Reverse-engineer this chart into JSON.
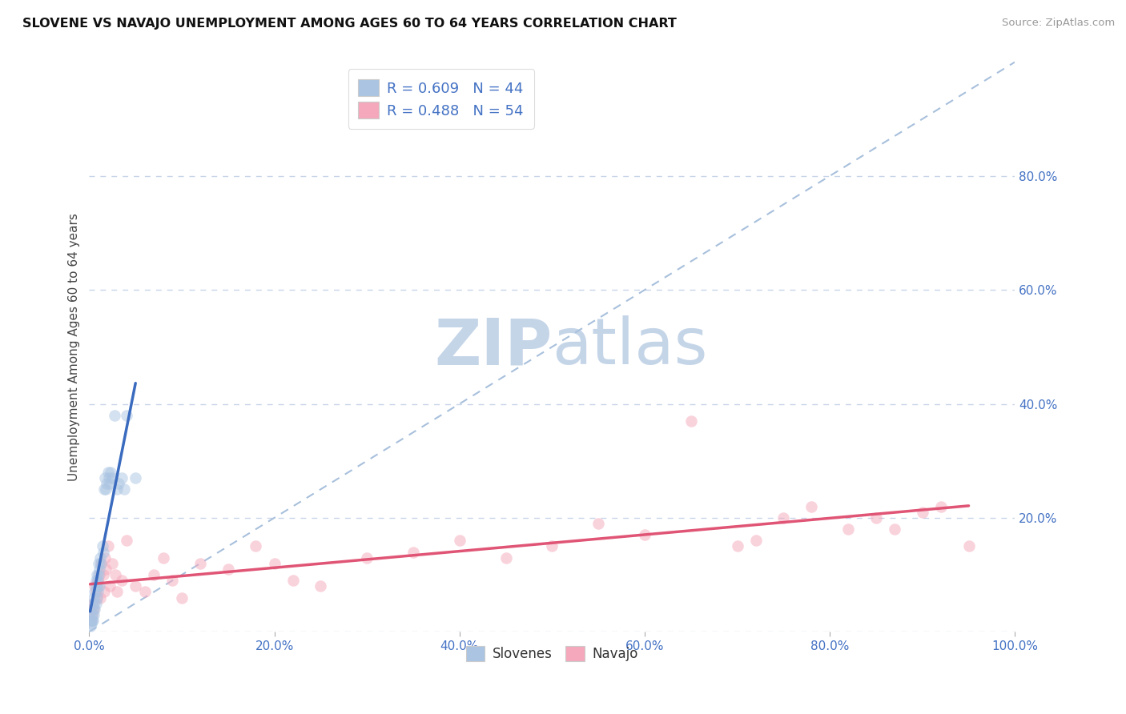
{
  "title": "SLOVENE VS NAVAJO UNEMPLOYMENT AMONG AGES 60 TO 64 YEARS CORRELATION CHART",
  "source": "Source: ZipAtlas.com",
  "ylabel": "Unemployment Among Ages 60 to 64 years",
  "xlim": [
    0,
    1.0
  ],
  "ylim": [
    0,
    1.0
  ],
  "xticks": [
    0.0,
    0.2,
    0.4,
    0.6,
    0.8,
    1.0
  ],
  "xticklabels": [
    "0.0%",
    "20.0%",
    "40.0%",
    "60.0%",
    "80.0%",
    "100.0%"
  ],
  "yticks": [
    0.0,
    0.2,
    0.4,
    0.6,
    0.8
  ],
  "yticklabels": [
    "",
    "20.0%",
    "40.0%",
    "60.0%",
    "80.0%"
  ],
  "slovene_color": "#aac4e2",
  "navajo_color": "#f5a8bb",
  "trendline_slovene_color": "#3a6bbf",
  "trendline_navajo_color": "#e05575",
  "diagonal_color": "#a8c0dc",
  "background_color": "#ffffff",
  "grid_color": "#c8d4e8",
  "legend_R_slovene": "R = 0.609",
  "legend_N_slovene": "N = 44",
  "legend_R_navajo": "R = 0.488",
  "legend_N_navajo": "N = 54",
  "legend_label_slovene": "Slovenes",
  "legend_label_navajo": "Navajo",
  "slovene_x": [
    0.001,
    0.002,
    0.002,
    0.003,
    0.003,
    0.004,
    0.004,
    0.005,
    0.005,
    0.005,
    0.006,
    0.006,
    0.007,
    0.007,
    0.007,
    0.008,
    0.008,
    0.008,
    0.009,
    0.009,
    0.01,
    0.01,
    0.011,
    0.011,
    0.012,
    0.013,
    0.014,
    0.015,
    0.016,
    0.017,
    0.018,
    0.019,
    0.02,
    0.021,
    0.022,
    0.023,
    0.025,
    0.027,
    0.03,
    0.032,
    0.035,
    0.038,
    0.04,
    0.05
  ],
  "slovene_y": [
    0.01,
    0.015,
    0.02,
    0.02,
    0.03,
    0.02,
    0.04,
    0.03,
    0.05,
    0.06,
    0.04,
    0.07,
    0.05,
    0.08,
    0.09,
    0.06,
    0.1,
    0.08,
    0.07,
    0.09,
    0.1,
    0.12,
    0.08,
    0.11,
    0.13,
    0.12,
    0.15,
    0.14,
    0.25,
    0.27,
    0.25,
    0.26,
    0.28,
    0.27,
    0.26,
    0.28,
    0.27,
    0.38,
    0.25,
    0.26,
    0.27,
    0.25,
    0.38,
    0.27
  ],
  "navajo_x": [
    0.001,
    0.002,
    0.003,
    0.004,
    0.005,
    0.006,
    0.007,
    0.008,
    0.009,
    0.01,
    0.011,
    0.012,
    0.013,
    0.015,
    0.016,
    0.017,
    0.018,
    0.02,
    0.022,
    0.025,
    0.028,
    0.03,
    0.035,
    0.04,
    0.05,
    0.06,
    0.07,
    0.08,
    0.09,
    0.1,
    0.12,
    0.15,
    0.18,
    0.2,
    0.22,
    0.25,
    0.3,
    0.35,
    0.4,
    0.45,
    0.5,
    0.55,
    0.6,
    0.65,
    0.7,
    0.72,
    0.75,
    0.78,
    0.82,
    0.85,
    0.87,
    0.9,
    0.92,
    0.95
  ],
  "navajo_y": [
    0.02,
    0.04,
    0.03,
    0.05,
    0.04,
    0.08,
    0.07,
    0.06,
    0.09,
    0.08,
    0.1,
    0.06,
    0.12,
    0.1,
    0.07,
    0.13,
    0.11,
    0.15,
    0.08,
    0.12,
    0.1,
    0.07,
    0.09,
    0.16,
    0.08,
    0.07,
    0.1,
    0.13,
    0.09,
    0.06,
    0.12,
    0.11,
    0.15,
    0.12,
    0.09,
    0.08,
    0.13,
    0.14,
    0.16,
    0.13,
    0.15,
    0.19,
    0.17,
    0.37,
    0.15,
    0.16,
    0.2,
    0.22,
    0.18,
    0.2,
    0.18,
    0.21,
    0.22,
    0.15
  ],
  "marker_size": 110,
  "marker_alpha": 0.5,
  "watermark_zip_color": "#c5d5e8",
  "watermark_atlas_color": "#c5d5e8",
  "watermark_fontsize": 58
}
